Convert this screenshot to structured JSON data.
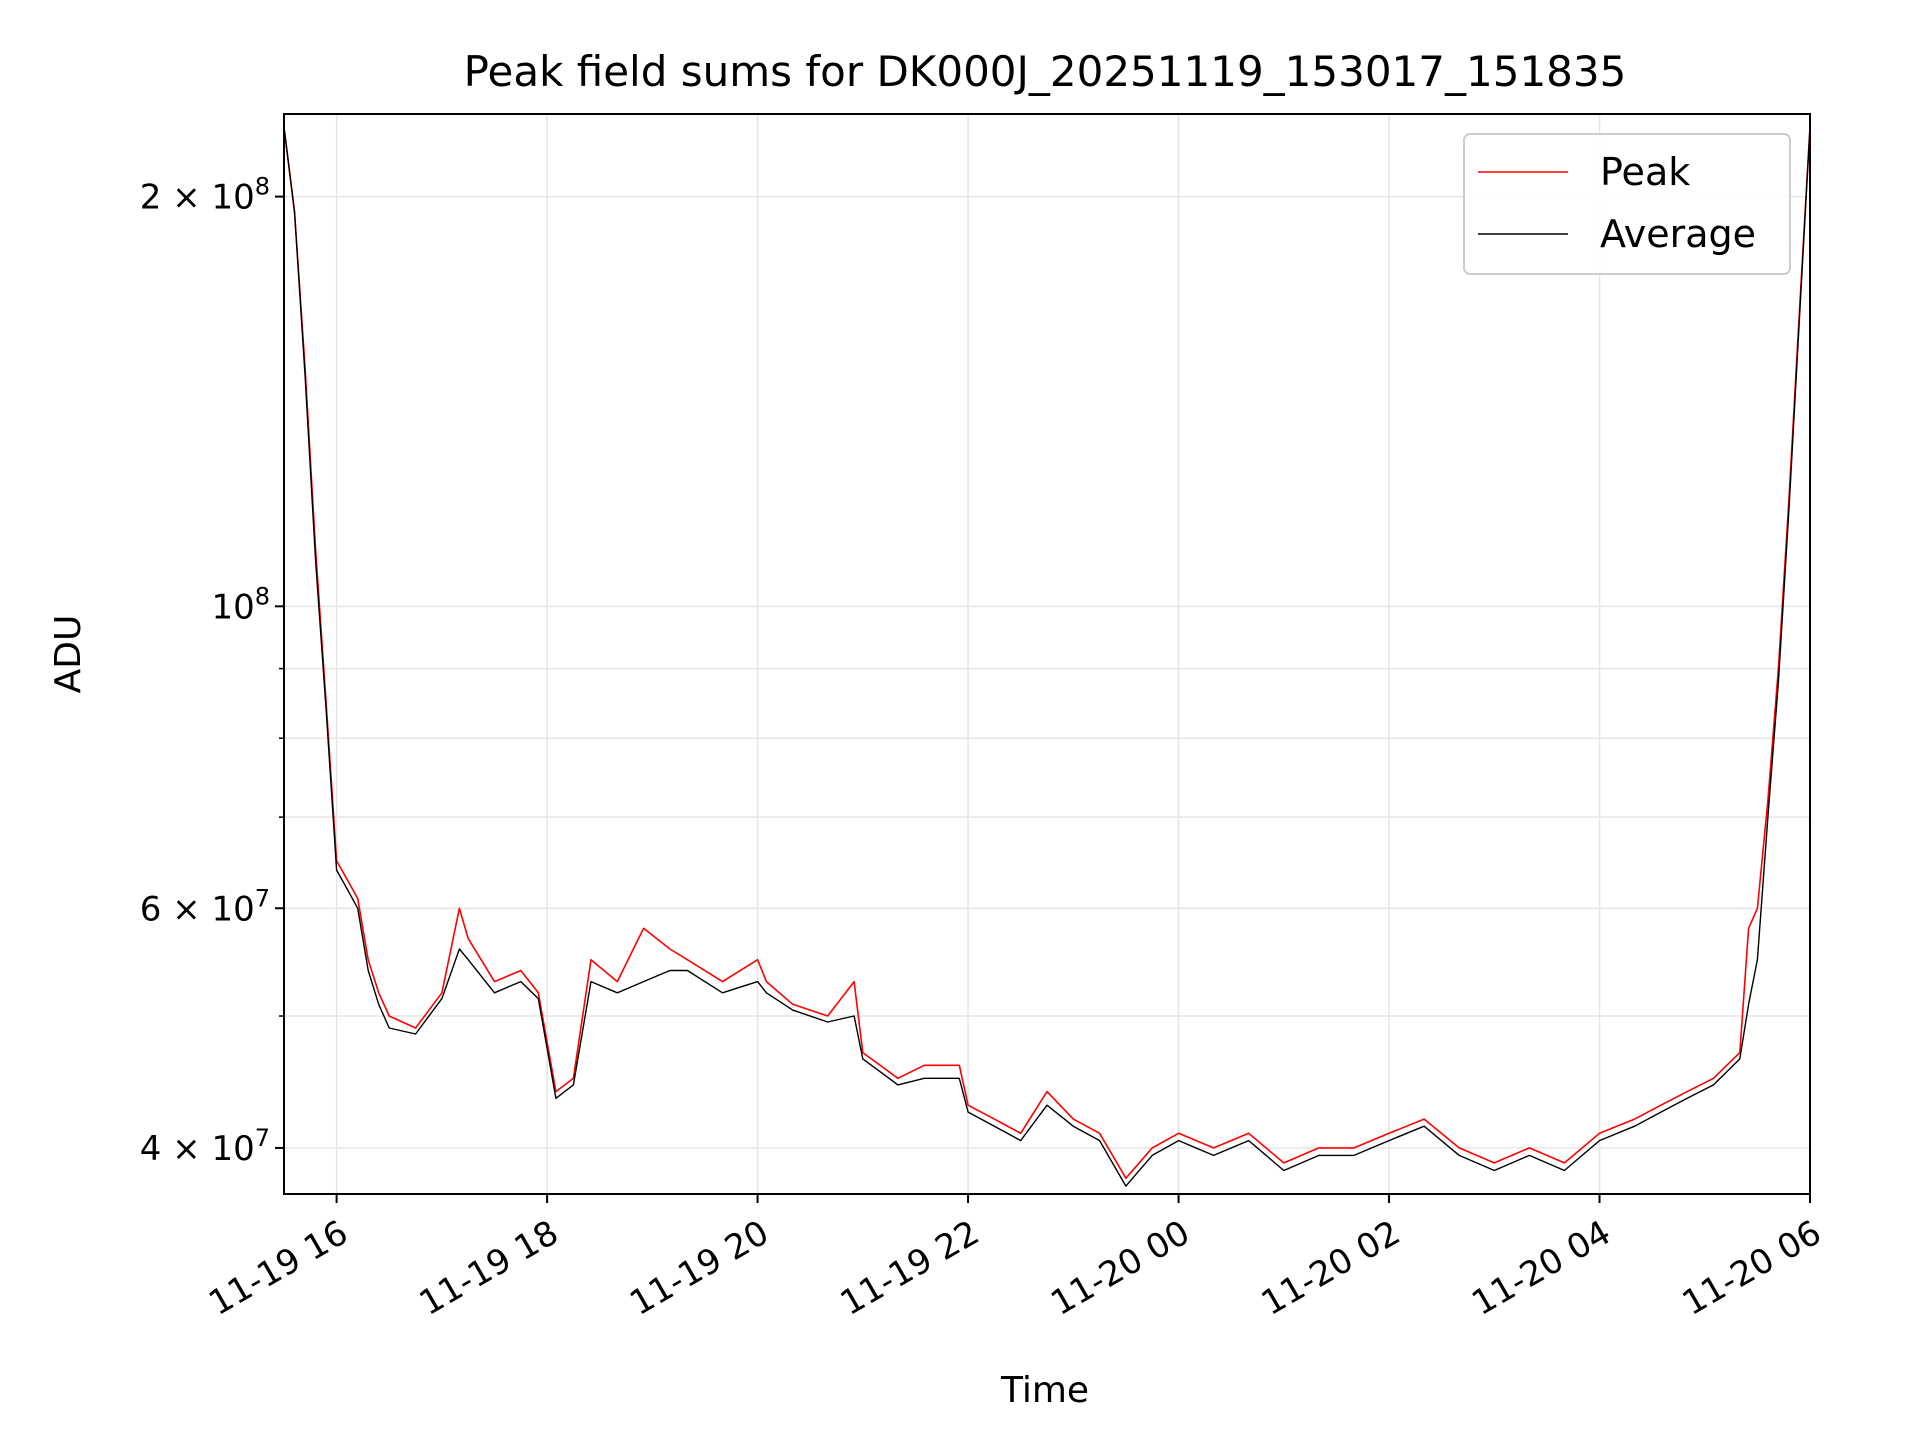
{
  "chart_data": {
    "type": "line",
    "title": "Peak field sums for DK000J_20251119_153017_151835",
    "xlabel": "Time",
    "ylabel": "ADU",
    "x_scale": "time",
    "y_scale": "log",
    "xlim": [
      "2025-11-19 15:30",
      "2025-11-20 06:00"
    ],
    "ylim": [
      37000000,
      230000000
    ],
    "x_ticks": [
      "11-19 16",
      "11-19 18",
      "11-19 20",
      "11-19 22",
      "11-20 00",
      "11-20 02",
      "11-20 04",
      "11-20 06"
    ],
    "x_tick_times": [
      "2025-11-19 16:00",
      "2025-11-19 18:00",
      "2025-11-19 20:00",
      "2025-11-19 22:00",
      "2025-11-20 00:00",
      "2025-11-20 02:00",
      "2025-11-20 04:00",
      "2025-11-20 06:00"
    ],
    "y_ticks": [
      {
        "value": 40000000,
        "mant": "4",
        "exp": "7"
      },
      {
        "value": 60000000,
        "mant": "6",
        "exp": "7"
      },
      {
        "value": 100000000,
        "mant": "",
        "exp": "8"
      },
      {
        "value": 200000000,
        "mant": "2",
        "exp": "8"
      }
    ],
    "y_minor_ticks": [
      50000000,
      70000000,
      80000000,
      90000000
    ],
    "grid": true,
    "legend_position": "top-right",
    "series": [
      {
        "name": "Peak",
        "color": "#ff0000",
        "x": [
          "2025-11-19 15:30",
          "2025-11-19 15:36",
          "2025-11-19 15:42",
          "2025-11-19 15:48",
          "2025-11-19 15:54",
          "2025-11-19 16:00",
          "2025-11-19 16:06",
          "2025-11-19 16:12",
          "2025-11-19 16:18",
          "2025-11-19 16:24",
          "2025-11-19 16:30",
          "2025-11-19 16:45",
          "2025-11-19 17:00",
          "2025-11-19 17:10",
          "2025-11-19 17:15",
          "2025-11-19 17:30",
          "2025-11-19 17:45",
          "2025-11-19 17:55",
          "2025-11-19 18:05",
          "2025-11-19 18:15",
          "2025-11-19 18:25",
          "2025-11-19 18:40",
          "2025-11-19 18:55",
          "2025-11-19 19:10",
          "2025-11-19 19:20",
          "2025-11-19 19:40",
          "2025-11-19 20:00",
          "2025-11-19 20:05",
          "2025-11-19 20:20",
          "2025-11-19 20:40",
          "2025-11-19 20:55",
          "2025-11-19 21:00",
          "2025-11-19 21:20",
          "2025-11-19 21:35",
          "2025-11-19 21:55",
          "2025-11-19 22:00",
          "2025-11-19 22:15",
          "2025-11-19 22:30",
          "2025-11-19 22:45",
          "2025-11-19 23:00",
          "2025-11-19 23:15",
          "2025-11-19 23:30",
          "2025-11-19 23:45",
          "2025-11-20 00:00",
          "2025-11-20 00:20",
          "2025-11-20 00:40",
          "2025-11-20 01:00",
          "2025-11-20 01:20",
          "2025-11-20 01:40",
          "2025-11-20 02:00",
          "2025-11-20 02:20",
          "2025-11-20 02:40",
          "2025-11-20 03:00",
          "2025-11-20 03:20",
          "2025-11-20 03:40",
          "2025-11-20 04:00",
          "2025-11-20 04:20",
          "2025-11-20 04:35",
          "2025-11-20 04:50",
          "2025-11-20 05:05",
          "2025-11-20 05:20",
          "2025-11-20 05:25",
          "2025-11-20 05:30",
          "2025-11-20 05:36",
          "2025-11-20 05:42",
          "2025-11-20 05:48",
          "2025-11-20 05:54",
          "2025-11-20 06:00"
        ],
        "values": [
          225000000,
          195000000,
          150000000,
          110000000,
          85000000,
          65000000,
          63000000,
          61000000,
          55000000,
          52000000,
          50000000,
          49000000,
          52000000,
          60000000,
          57000000,
          53000000,
          54000000,
          52000000,
          44000000,
          45000000,
          55000000,
          53000000,
          58000000,
          56000000,
          55000000,
          53000000,
          55000000,
          53000000,
          51000000,
          50000000,
          53000000,
          47000000,
          45000000,
          46000000,
          46000000,
          43000000,
          42000000,
          41000000,
          44000000,
          42000000,
          41000000,
          38000000,
          40000000,
          41000000,
          40000000,
          41000000,
          39000000,
          40000000,
          40000000,
          41000000,
          42000000,
          40000000,
          39000000,
          40000000,
          39000000,
          41000000,
          42000000,
          43000000,
          44000000,
          45000000,
          47000000,
          58000000,
          60000000,
          72000000,
          90000000,
          120000000,
          165000000,
          225000000
        ]
      },
      {
        "name": "Average",
        "color": "#000000",
        "x": [
          "2025-11-19 15:30",
          "2025-11-19 15:36",
          "2025-11-19 15:42",
          "2025-11-19 15:48",
          "2025-11-19 15:54",
          "2025-11-19 16:00",
          "2025-11-19 16:06",
          "2025-11-19 16:12",
          "2025-11-19 16:18",
          "2025-11-19 16:24",
          "2025-11-19 16:30",
          "2025-11-19 16:45",
          "2025-11-19 17:00",
          "2025-11-19 17:10",
          "2025-11-19 17:15",
          "2025-11-19 17:30",
          "2025-11-19 17:45",
          "2025-11-19 17:55",
          "2025-11-19 18:05",
          "2025-11-19 18:15",
          "2025-11-19 18:25",
          "2025-11-19 18:40",
          "2025-11-19 18:55",
          "2025-11-19 19:10",
          "2025-11-19 19:20",
          "2025-11-19 19:40",
          "2025-11-19 20:00",
          "2025-11-19 20:05",
          "2025-11-19 20:20",
          "2025-11-19 20:40",
          "2025-11-19 20:55",
          "2025-11-19 21:00",
          "2025-11-19 21:20",
          "2025-11-19 21:35",
          "2025-11-19 21:55",
          "2025-11-19 22:00",
          "2025-11-19 22:15",
          "2025-11-19 22:30",
          "2025-11-19 22:45",
          "2025-11-19 23:00",
          "2025-11-19 23:15",
          "2025-11-19 23:30",
          "2025-11-19 23:45",
          "2025-11-20 00:00",
          "2025-11-20 00:20",
          "2025-11-20 00:40",
          "2025-11-20 01:00",
          "2025-11-20 01:20",
          "2025-11-20 01:40",
          "2025-11-20 02:00",
          "2025-11-20 02:20",
          "2025-11-20 02:40",
          "2025-11-20 03:00",
          "2025-11-20 03:20",
          "2025-11-20 03:40",
          "2025-11-20 04:00",
          "2025-11-20 04:20",
          "2025-11-20 04:35",
          "2025-11-20 04:50",
          "2025-11-20 05:05",
          "2025-11-20 05:20",
          "2025-11-20 05:25",
          "2025-11-20 05:30",
          "2025-11-20 05:36",
          "2025-11-20 05:42",
          "2025-11-20 05:48",
          "2025-11-20 05:54",
          "2025-11-20 06:00"
        ],
        "values": [
          225000000,
          195000000,
          148000000,
          108000000,
          84000000,
          64000000,
          62000000,
          60000000,
          54000000,
          51000000,
          49000000,
          48500000,
          51500000,
          56000000,
          55000000,
          52000000,
          53000000,
          51500000,
          43500000,
          44500000,
          53000000,
          52000000,
          53000000,
          54000000,
          54000000,
          52000000,
          53000000,
          52000000,
          50500000,
          49500000,
          50000000,
          46500000,
          44500000,
          45000000,
          45000000,
          42500000,
          41500000,
          40500000,
          43000000,
          41500000,
          40500000,
          37500000,
          39500000,
          40500000,
          39500000,
          40500000,
          38500000,
          39500000,
          39500000,
          40500000,
          41500000,
          39500000,
          38500000,
          39500000,
          38500000,
          40500000,
          41500000,
          42500000,
          43500000,
          44500000,
          46500000,
          51000000,
          55000000,
          70000000,
          88000000,
          118000000,
          163000000,
          225000000
        ]
      }
    ]
  }
}
